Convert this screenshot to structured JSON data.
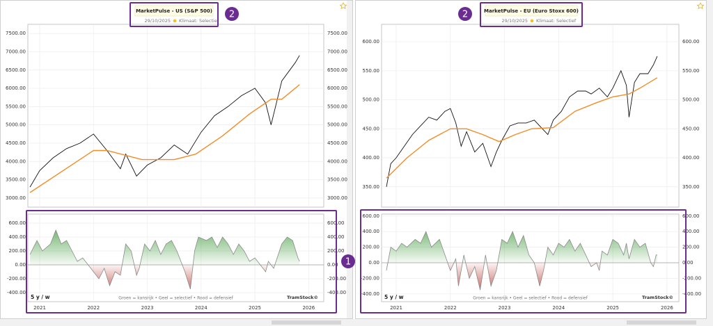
{
  "annotations": {
    "indicator_marker": "1",
    "title_marker": "2"
  },
  "chart_data": [
    {
      "type": "line",
      "title": "MarketPulse - US (S&P 500)",
      "date": "29/10/2025",
      "climate": "Klimaat: Selectief",
      "xlim": [
        2020.78,
        2026.28
      ],
      "ylim": [
        2750,
        7750
      ],
      "yticks": [
        {
          "value": 3000,
          "label": "3000.00"
        },
        {
          "value": 3500,
          "label": "3500.00"
        },
        {
          "value": 4000,
          "label": "4000.00"
        },
        {
          "value": 4500,
          "label": "4500.00"
        },
        {
          "value": 5000,
          "label": "5000.00"
        },
        {
          "value": 5500,
          "label": "5500.00"
        },
        {
          "value": 6000,
          "label": "6000.00"
        },
        {
          "value": 6500,
          "label": "6500.00"
        },
        {
          "value": 7000,
          "label": "7000.00"
        },
        {
          "value": 7500,
          "label": "7500.00"
        }
      ],
      "series": [
        {
          "color": "#111111",
          "x": [
            2020.82,
            2021.0,
            2021.25,
            2021.5,
            2021.75,
            2022.0,
            2022.25,
            2022.5,
            2022.6,
            2022.8,
            2023.0,
            2023.25,
            2023.5,
            2023.75,
            2024.0,
            2024.25,
            2024.5,
            2024.75,
            2025.0,
            2025.2,
            2025.3,
            2025.5,
            2025.75,
            2025.83
          ],
          "values": [
            3300,
            3750,
            4100,
            4350,
            4500,
            4750,
            4300,
            3800,
            4200,
            3600,
            3900,
            4100,
            4450,
            4200,
            4800,
            5250,
            5500,
            5800,
            6000,
            5600,
            5000,
            6200,
            6700,
            6900
          ]
        },
        {
          "color": "#f28c28",
          "x": [
            2020.82,
            2022.0,
            2022.25,
            2022.9,
            2023.5,
            2023.9,
            2024.4,
            2024.9,
            2025.3,
            2025.5,
            2025.83
          ],
          "values": [
            3150,
            4300,
            4300,
            4050,
            4050,
            4200,
            4700,
            5300,
            5700,
            5700,
            6100
          ]
        }
      ]
    },
    {
      "type": "area",
      "period": "5 y / w",
      "legend_note": "Groen = kansrijk • Geel = selectief • Rood = defensief",
      "brand": "TramStock©",
      "xlim": [
        2020.78,
        2026.28
      ],
      "ylim": [
        -530,
        730
      ],
      "xticks": [
        2021,
        2022,
        2023,
        2024,
        2025,
        2026
      ],
      "yticks": [
        {
          "value": -400,
          "label": "-400.00"
        },
        {
          "value": -200,
          "label": "-200.00"
        },
        {
          "value": 0,
          "label": "0.00"
        },
        {
          "value": 200,
          "label": "200.00"
        },
        {
          "value": 400,
          "label": "400.00"
        },
        {
          "value": 600,
          "label": "600.00"
        }
      ],
      "color_up": "#3f9a3a",
      "color_down": "#b8332b",
      "line_color": "#8a8a8a",
      "x": [
        2020.82,
        2020.95,
        2021.05,
        2021.2,
        2021.3,
        2021.4,
        2021.5,
        2021.6,
        2021.7,
        2021.8,
        2021.9,
        2022.0,
        2022.1,
        2022.2,
        2022.3,
        2022.4,
        2022.5,
        2022.6,
        2022.7,
        2022.8,
        2022.85,
        2022.95,
        2023.05,
        2023.15,
        2023.25,
        2023.35,
        2023.45,
        2023.55,
        2023.7,
        2023.8,
        2023.88,
        2023.95,
        2024.1,
        2024.2,
        2024.3,
        2024.4,
        2024.5,
        2024.6,
        2024.7,
        2024.8,
        2024.9,
        2025.0,
        2025.1,
        2025.2,
        2025.25,
        2025.35,
        2025.5,
        2025.6,
        2025.7,
        2025.8,
        2025.83
      ],
      "values": [
        150,
        350,
        200,
        300,
        500,
        300,
        350,
        200,
        50,
        100,
        0,
        -100,
        -200,
        -50,
        -300,
        -100,
        -150,
        300,
        200,
        -150,
        -50,
        300,
        200,
        350,
        150,
        300,
        350,
        200,
        -100,
        -350,
        200,
        400,
        350,
        400,
        250,
        400,
        300,
        150,
        300,
        200,
        50,
        100,
        0,
        -100,
        50,
        -50,
        300,
        400,
        350,
        100,
        50
      ]
    },
    {
      "type": "line",
      "title": "MarketPulse - EU (Euro Stoxx 600)",
      "date": "29/10/2025",
      "climate": "Klimaat: Selectief",
      "xlim": [
        2020.73,
        2026.22
      ],
      "ylim": [
        315,
        630
      ],
      "yticks": [
        {
          "value": 350,
          "label": "350.00"
        },
        {
          "value": 400,
          "label": "400.00"
        },
        {
          "value": 450,
          "label": "450.00"
        },
        {
          "value": 500,
          "label": "500.00"
        },
        {
          "value": 550,
          "label": "550.00"
        },
        {
          "value": 600,
          "label": "600.00"
        }
      ],
      "series": [
        {
          "color": "#111111",
          "x": [
            2020.82,
            2020.9,
            2021.0,
            2021.15,
            2021.3,
            2021.45,
            2021.6,
            2021.75,
            2021.9,
            2022.0,
            2022.1,
            2022.2,
            2022.3,
            2022.45,
            2022.6,
            2022.75,
            2022.85,
            2022.95,
            2023.1,
            2023.25,
            2023.4,
            2023.55,
            2023.7,
            2023.8,
            2023.9,
            2024.05,
            2024.2,
            2024.35,
            2024.5,
            2024.6,
            2024.75,
            2024.9,
            2025.0,
            2025.15,
            2025.25,
            2025.3,
            2025.4,
            2025.5,
            2025.65,
            2025.75,
            2025.82
          ],
          "values": [
            350,
            390,
            400,
            420,
            440,
            455,
            470,
            465,
            480,
            485,
            460,
            420,
            445,
            410,
            425,
            385,
            410,
            430,
            455,
            460,
            460,
            465,
            450,
            440,
            465,
            480,
            505,
            515,
            515,
            510,
            520,
            505,
            520,
            550,
            525,
            470,
            530,
            545,
            545,
            560,
            575
          ]
        },
        {
          "color": "#f28c28",
          "x": [
            2020.82,
            2021.2,
            2021.6,
            2022.0,
            2022.3,
            2022.6,
            2022.9,
            2023.2,
            2023.5,
            2023.9,
            2024.3,
            2024.7,
            2025.0,
            2025.3,
            2025.5,
            2025.82
          ],
          "values": [
            365,
            400,
            430,
            450,
            450,
            440,
            428,
            440,
            450,
            452,
            480,
            495,
            505,
            510,
            520,
            538
          ]
        }
      ]
    },
    {
      "type": "area",
      "period": "5 y / w",
      "legend_note": "Groen = kansrijk • Geel = selectief • Rood = defensief",
      "brand": "TramStock©",
      "xlim": [
        2020.73,
        2026.22
      ],
      "ylim": [
        -500,
        625
      ],
      "xticks": [
        2021,
        2022,
        2023,
        2024,
        2025,
        2026
      ],
      "yticks": [
        {
          "value": -400,
          "label": "-400.00"
        },
        {
          "value": -200,
          "label": "-200.00"
        },
        {
          "value": 0,
          "label": "0.00"
        },
        {
          "value": 200,
          "label": "200.00"
        },
        {
          "value": 400,
          "label": "400.00"
        },
        {
          "value": 600,
          "label": "600.00"
        }
      ],
      "color_up": "#3f9a3a",
      "color_down": "#b8332b",
      "line_color": "#8a8a8a",
      "x": [
        2020.82,
        2020.9,
        2021.0,
        2021.1,
        2021.2,
        2021.35,
        2021.45,
        2021.55,
        2021.65,
        2021.8,
        2021.9,
        2022.0,
        2022.1,
        2022.15,
        2022.25,
        2022.35,
        2022.45,
        2022.55,
        2022.65,
        2022.75,
        2022.85,
        2022.95,
        2023.05,
        2023.15,
        2023.25,
        2023.35,
        2023.45,
        2023.55,
        2023.65,
        2023.72,
        2023.8,
        2023.9,
        2024.0,
        2024.1,
        2024.2,
        2024.3,
        2024.4,
        2024.5,
        2024.6,
        2024.7,
        2024.75,
        2024.8,
        2024.9,
        2025.0,
        2025.1,
        2025.2,
        2025.25,
        2025.3,
        2025.4,
        2025.5,
        2025.6,
        2025.7,
        2025.75,
        2025.8,
        2025.82
      ],
      "values": [
        -100,
        200,
        150,
        250,
        200,
        300,
        250,
        400,
        200,
        300,
        100,
        -100,
        50,
        -300,
        100,
        -200,
        -50,
        -350,
        100,
        -300,
        -100,
        300,
        250,
        400,
        200,
        350,
        100,
        0,
        -300,
        -100,
        200,
        100,
        250,
        200,
        300,
        150,
        250,
        100,
        -50,
        0,
        -100,
        150,
        100,
        300,
        250,
        100,
        250,
        50,
        300,
        200,
        250,
        0,
        -50,
        100,
        100
      ]
    }
  ]
}
